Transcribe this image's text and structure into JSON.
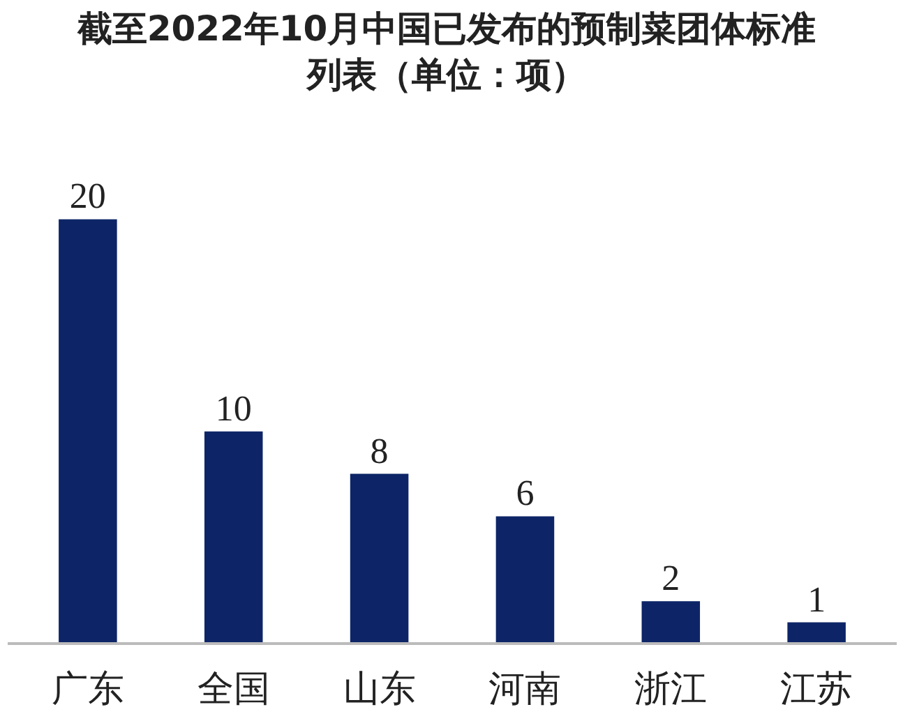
{
  "chart_data": {
    "type": "bar",
    "title": "截至2022年10月中国已发布的预制菜团体标准列表（单位：项）",
    "categories": [
      "广东",
      "全国",
      "山东",
      "河南",
      "浙江",
      "江苏"
    ],
    "values": [
      20,
      10,
      8,
      6,
      2,
      1
    ],
    "color": "#0d2567",
    "data_labels": true,
    "grid": false
  }
}
